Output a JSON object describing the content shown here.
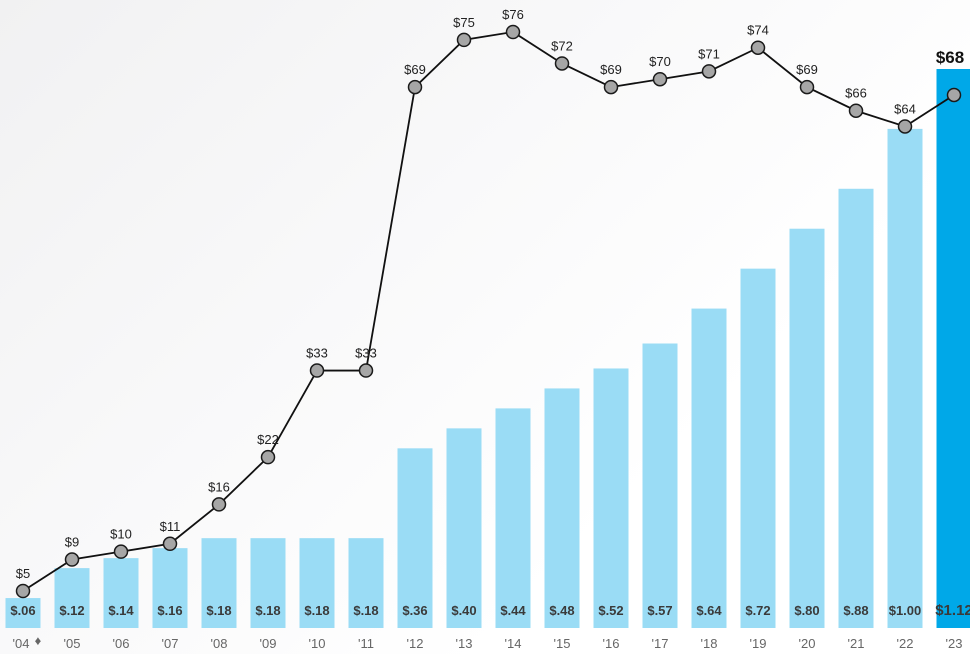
{
  "chart_data": {
    "type": "bar+line",
    "categories": [
      "'04",
      "'05",
      "'06",
      "'07",
      "'08",
      "'09",
      "'10",
      "'11",
      "'12",
      "'13",
      "'14",
      "'15",
      "'16",
      "'17",
      "'18",
      "'19",
      "'20",
      "'21",
      "'22",
      "'23"
    ],
    "marker_after_first_category": "♦",
    "series": [
      {
        "type": "bar",
        "values": [
          0.06,
          0.12,
          0.14,
          0.16,
          0.18,
          0.18,
          0.18,
          0.18,
          0.36,
          0.4,
          0.44,
          0.48,
          0.52,
          0.57,
          0.64,
          0.72,
          0.8,
          0.88,
          1.0,
          1.12
        ],
        "labels": [
          "$.06",
          "$.12",
          "$.14",
          "$.16",
          "$.18",
          "$.18",
          "$.18",
          "$.18",
          "$.36",
          "$.40",
          "$.44",
          "$.48",
          "$.52",
          "$.57",
          "$.64",
          "$.72",
          "$.80",
          "$.88",
          "$1.00",
          "$1.12"
        ],
        "color": "#9adcf5",
        "highlight_color": "#00a8e8"
      },
      {
        "type": "line",
        "values": [
          5,
          9,
          10,
          11,
          16,
          22,
          33,
          33,
          69,
          75,
          76,
          72,
          69,
          70,
          71,
          74,
          69,
          66,
          64,
          68
        ],
        "labels": [
          "$5",
          "$9",
          "$10",
          "$11",
          "$16",
          "$22",
          "$33",
          "$33",
          "$69",
          "$75",
          "$76",
          "$72",
          "$69",
          "$70",
          "$71",
          "$74",
          "$69",
          "$66",
          "$64",
          "$68"
        ],
        "line_color": "#111111",
        "marker_color": "#a6a6a6"
      }
    ],
    "highlight_index": 19,
    "bar_ylim": [
      0,
      1.12
    ],
    "line_ylim": [
      5,
      76
    ],
    "grid": false,
    "legend": "none"
  }
}
